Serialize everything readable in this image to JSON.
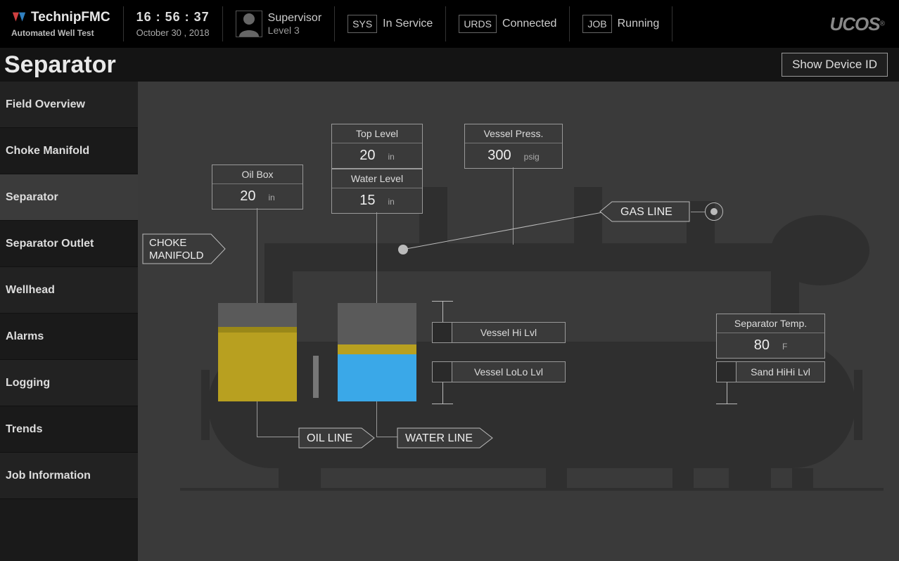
{
  "header": {
    "brand": "TechnipFMC",
    "subtitle": "Automated Well Test",
    "time": "16 : 56 : 37",
    "date": "October   30 , 2018",
    "user_role": "Supervisor",
    "user_level": "Level 3",
    "sys_tag": "SYS",
    "sys_val": "In Service",
    "urds_tag": "URDS",
    "urds_val": "Connected",
    "job_tag": "JOB",
    "job_val": "Running",
    "platform": "UCOS"
  },
  "page": {
    "title": "Separator",
    "show_device_btn": "Show Device ID"
  },
  "sidebar": {
    "items": [
      "Field Overview",
      "Choke Manifold",
      "Separator",
      "Separator Outlet",
      "Wellhead",
      "Alarms",
      "Logging",
      "Trends",
      "Job Information"
    ],
    "active_index": 2
  },
  "readings": {
    "oil_box": {
      "title": "Oil Box",
      "value": "20",
      "unit": "in"
    },
    "top_level": {
      "title": "Top Level",
      "value": "20",
      "unit": "in"
    },
    "water_level": {
      "title": "Water Level",
      "value": "15",
      "unit": "in"
    },
    "vessel_press": {
      "title": "Vessel Press.",
      "value": "300",
      "unit": "psig"
    },
    "sep_temp": {
      "title": "Separator Temp.",
      "value": "80",
      "unit": "F"
    }
  },
  "indicators": {
    "vessel_hi": "Vessel Hi Lvl",
    "vessel_lolo": "Vessel LoLo Lvl",
    "sand_hihi": "Sand HiHi Lvl"
  },
  "labels": {
    "choke": "CHOKE\nMANIFOLD",
    "oil_line": "OIL LINE",
    "water_line": "WATER LINE",
    "gas_line": "GAS LINE"
  },
  "tanks": {
    "oil": {
      "fill_pct": 70,
      "cap_pct": 6,
      "fill_color": "#b8a020",
      "cap_color": "#9a8818"
    },
    "water": {
      "fill_pct": 48,
      "cap_pct": 10,
      "fill_color": "#3aa8e8",
      "cap_color": "#b8a020"
    }
  },
  "colors": {
    "bg": "#3a3a3a",
    "tank_body": "#5a5a5a",
    "border": "#999999",
    "text": "#dddddd"
  }
}
